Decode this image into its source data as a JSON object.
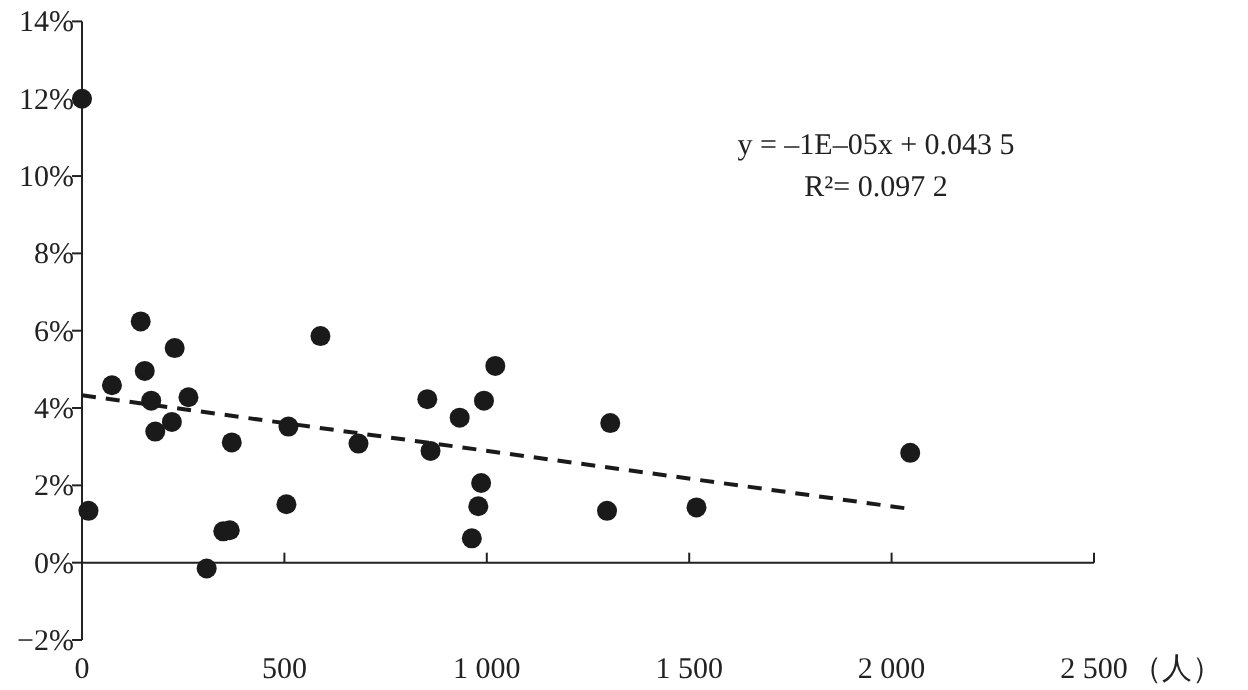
{
  "chart_data": {
    "type": "scatter",
    "annotations": [
      "y = –1E–05x + 0.043 5",
      "R²= 0.097 2"
    ],
    "xlim": [
      0,
      2500
    ],
    "xticks": [
      0,
      {
        "value": 500,
        "label": "500"
      },
      {
        "value": 1000,
        "label": "1 000"
      },
      {
        "value": 1500,
        "label": "1 500"
      },
      {
        "value": 2000,
        "label": "2 000"
      },
      {
        "value": 2500,
        "label": "2 500"
      }
    ],
    "xlabel": "（人）",
    "ylim": [
      -2,
      14
    ],
    "yticks": [
      {
        "value": -2,
        "label": "−2%"
      },
      {
        "value": 0,
        "label": "0%"
      },
      {
        "value": 2,
        "label": "2%"
      },
      {
        "value": 4,
        "label": "4%"
      },
      {
        "value": 6,
        "label": "6%"
      },
      {
        "value": 8,
        "label": "8%"
      },
      {
        "value": 10,
        "label": "10%"
      },
      {
        "value": 12,
        "label": "12%"
      },
      {
        "value": 14,
        "label": "14%"
      }
    ],
    "series": [
      {
        "color": "#1a1a1a",
        "marker": "circle",
        "x": [
          0,
          16,
          74,
          145,
          155,
          171,
          181,
          222,
          229,
          263,
          308,
          349,
          365,
          370,
          505,
          510,
          589,
          683,
          853,
          861,
          933,
          963,
          979,
          986,
          993,
          1021,
          1297,
          1305,
          1518,
          2046
        ],
        "values": [
          12.0,
          1.34,
          4.59,
          6.24,
          4.96,
          4.19,
          3.39,
          3.64,
          5.55,
          4.28,
          -0.15,
          0.81,
          0.84,
          3.11,
          1.51,
          3.52,
          5.86,
          3.08,
          4.23,
          2.89,
          3.75,
          0.63,
          1.46,
          2.06,
          4.19,
          5.09,
          1.34,
          3.61,
          1.43,
          2.84
        ]
      },
      {
        "type": "line",
        "color": "#1a1a1a",
        "line_style": "dashed",
        "marker": "none",
        "x": [
          0,
          2046
        ],
        "values": [
          4.33,
          1.39
        ]
      }
    ]
  }
}
